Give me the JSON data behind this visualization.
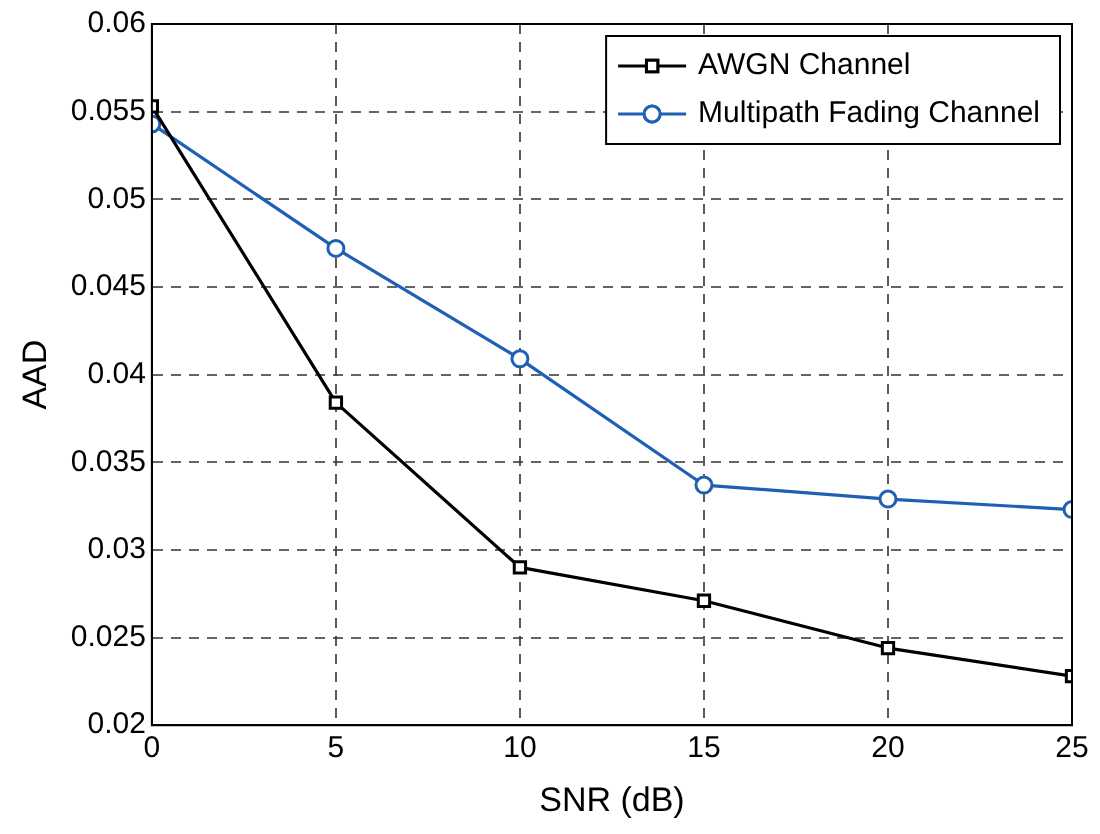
{
  "chart_data": {
    "type": "line",
    "xlabel": "SNR (dB)",
    "ylabel": "AAD",
    "x": [
      0,
      5,
      10,
      15,
      20,
      25
    ],
    "series": [
      {
        "name": "AWGN Channel",
        "color": "#000000",
        "marker": "square",
        "values": [
          0.0553,
          0.0384,
          0.029,
          0.0271,
          0.0244,
          0.0228
        ]
      },
      {
        "name": "Multipath Fading Channel",
        "color": "#1f5fb4",
        "marker": "circle",
        "values": [
          0.0543,
          0.0472,
          0.0409,
          0.0337,
          0.0329,
          0.0323
        ]
      }
    ],
    "xlim": [
      0,
      25
    ],
    "xticks": [
      0,
      5,
      10,
      15,
      20,
      25
    ],
    "ylim": [
      0.02,
      0.06
    ],
    "yticks": [
      0.02,
      0.025,
      0.03,
      0.035,
      0.04,
      0.045,
      0.05,
      0.055,
      0.06
    ],
    "grid": true,
    "line_style": "solid",
    "legend": "top right"
  }
}
